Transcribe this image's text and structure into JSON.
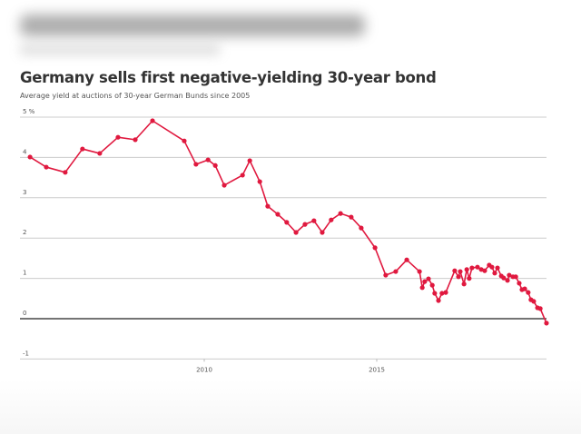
{
  "chart_data": {
    "type": "line",
    "title": "Germany sells first negative-yielding 30-year bond",
    "subtitle": "Average yield at auctions of 30-year German Bunds since 2005",
    "xlabel": "",
    "ylabel": "",
    "ylim": [
      -1,
      5
    ],
    "xlim": [
      2005,
      2020
    ],
    "y_ticks": [
      {
        "value": 5,
        "label": "5 %"
      },
      {
        "value": 4,
        "label": "4"
      },
      {
        "value": 3,
        "label": "3"
      },
      {
        "value": 2,
        "label": "2"
      },
      {
        "value": 1,
        "label": "1"
      },
      {
        "value": 0,
        "label": "0"
      },
      {
        "value": -1,
        "label": "-1"
      }
    ],
    "x_ticks": [
      {
        "value": 2010,
        "label": "2010"
      },
      {
        "value": 2015,
        "label": "2015"
      }
    ],
    "grid": true,
    "colors": {
      "line": "#e0193f",
      "zero": "#222222",
      "grid": "#cccccc"
    },
    "series": [
      {
        "name": "Average yield",
        "x": [
          2004.95,
          2005.42,
          2005.97,
          2006.47,
          2006.97,
          2007.5,
          2008.0,
          2008.5,
          2009.42,
          2009.76,
          2010.11,
          2010.32,
          2010.58,
          2011.11,
          2011.32,
          2011.61,
          2011.84,
          2012.13,
          2012.39,
          2012.66,
          2012.92,
          2013.18,
          2013.42,
          2013.68,
          2013.95,
          2014.26,
          2014.55,
          2014.95,
          2015.26,
          2015.55,
          2015.87,
          2016.24,
          2016.32,
          2016.39,
          2016.5,
          2016.61,
          2016.68,
          2016.79,
          2016.89,
          2017.0,
          2017.26,
          2017.37,
          2017.42,
          2017.53,
          2017.61,
          2017.68,
          2017.76,
          2017.92,
          2018.03,
          2018.13,
          2018.26,
          2018.34,
          2018.42,
          2018.5,
          2018.61,
          2018.68,
          2018.79,
          2018.84,
          2018.95,
          2019.03,
          2019.13,
          2019.21,
          2019.29,
          2019.39,
          2019.47,
          2019.55,
          2019.66,
          2019.74,
          2019.92
        ],
        "y": [
          4.01,
          3.76,
          3.63,
          4.21,
          4.1,
          4.5,
          4.44,
          4.91,
          4.41,
          3.83,
          3.94,
          3.8,
          3.31,
          3.56,
          3.92,
          3.4,
          2.79,
          2.59,
          2.39,
          2.14,
          2.34,
          2.43,
          2.14,
          2.45,
          2.61,
          2.52,
          2.25,
          1.76,
          1.08,
          1.17,
          1.46,
          1.17,
          0.77,
          0.92,
          0.99,
          0.83,
          0.63,
          0.45,
          0.63,
          0.65,
          1.19,
          1.04,
          1.17,
          0.86,
          1.22,
          1.0,
          1.26,
          1.28,
          1.22,
          1.19,
          1.33,
          1.28,
          1.13,
          1.26,
          1.06,
          1.01,
          0.95,
          1.08,
          1.04,
          1.04,
          0.88,
          0.72,
          0.74,
          0.65,
          0.47,
          0.43,
          0.27,
          0.25,
          -0.11
        ]
      }
    ]
  }
}
